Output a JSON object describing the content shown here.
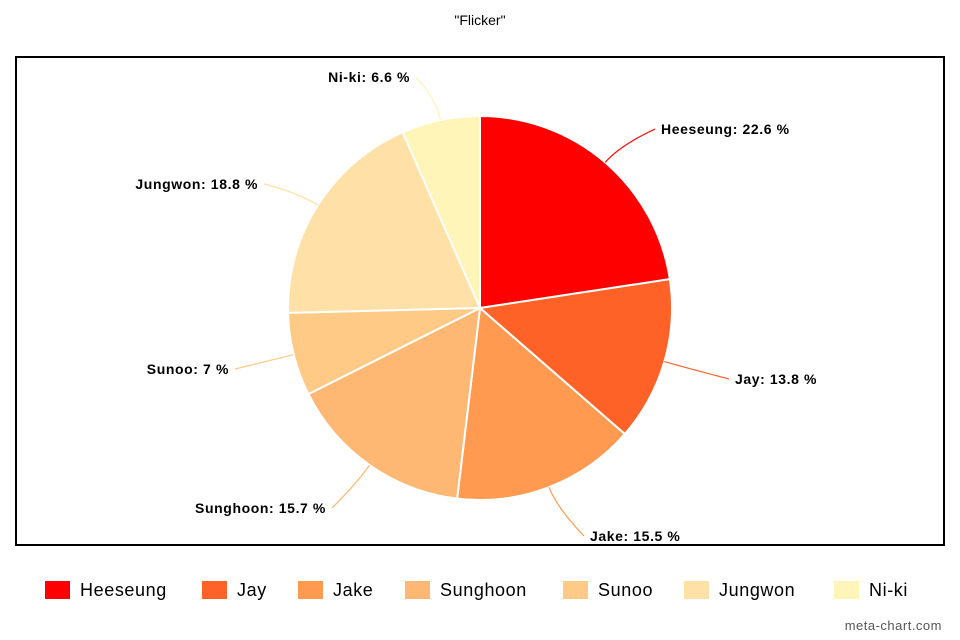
{
  "chart_data": {
    "type": "pie",
    "title": "\"Flicker\"",
    "categories": [
      "Heeseung",
      "Jay",
      "Jake",
      "Sunghoon",
      "Sunoo",
      "Jungwon",
      "Ni-ki"
    ],
    "values": [
      22.6,
      13.8,
      15.5,
      15.7,
      7,
      18.8,
      6.6
    ],
    "data_labels": [
      "Heeseung: 22.6 %",
      "Jay: 13.8 %",
      "Jake: 15.5 %",
      "Sunghoon: 15.7 %",
      "Sunoo: 7 %",
      "Jungwon: 18.8 %",
      "Ni-ki: 6.6 %"
    ],
    "colors": [
      "#ff0000",
      "#ff6226",
      "#ff9a50",
      "#ffb873",
      "#ffca85",
      "#ffe1a8",
      "#fff5b8"
    ],
    "legend_position": "bottom",
    "start_angle": "12 o'clock",
    "direction": "clockwise"
  },
  "watermark": "meta-chart.com"
}
